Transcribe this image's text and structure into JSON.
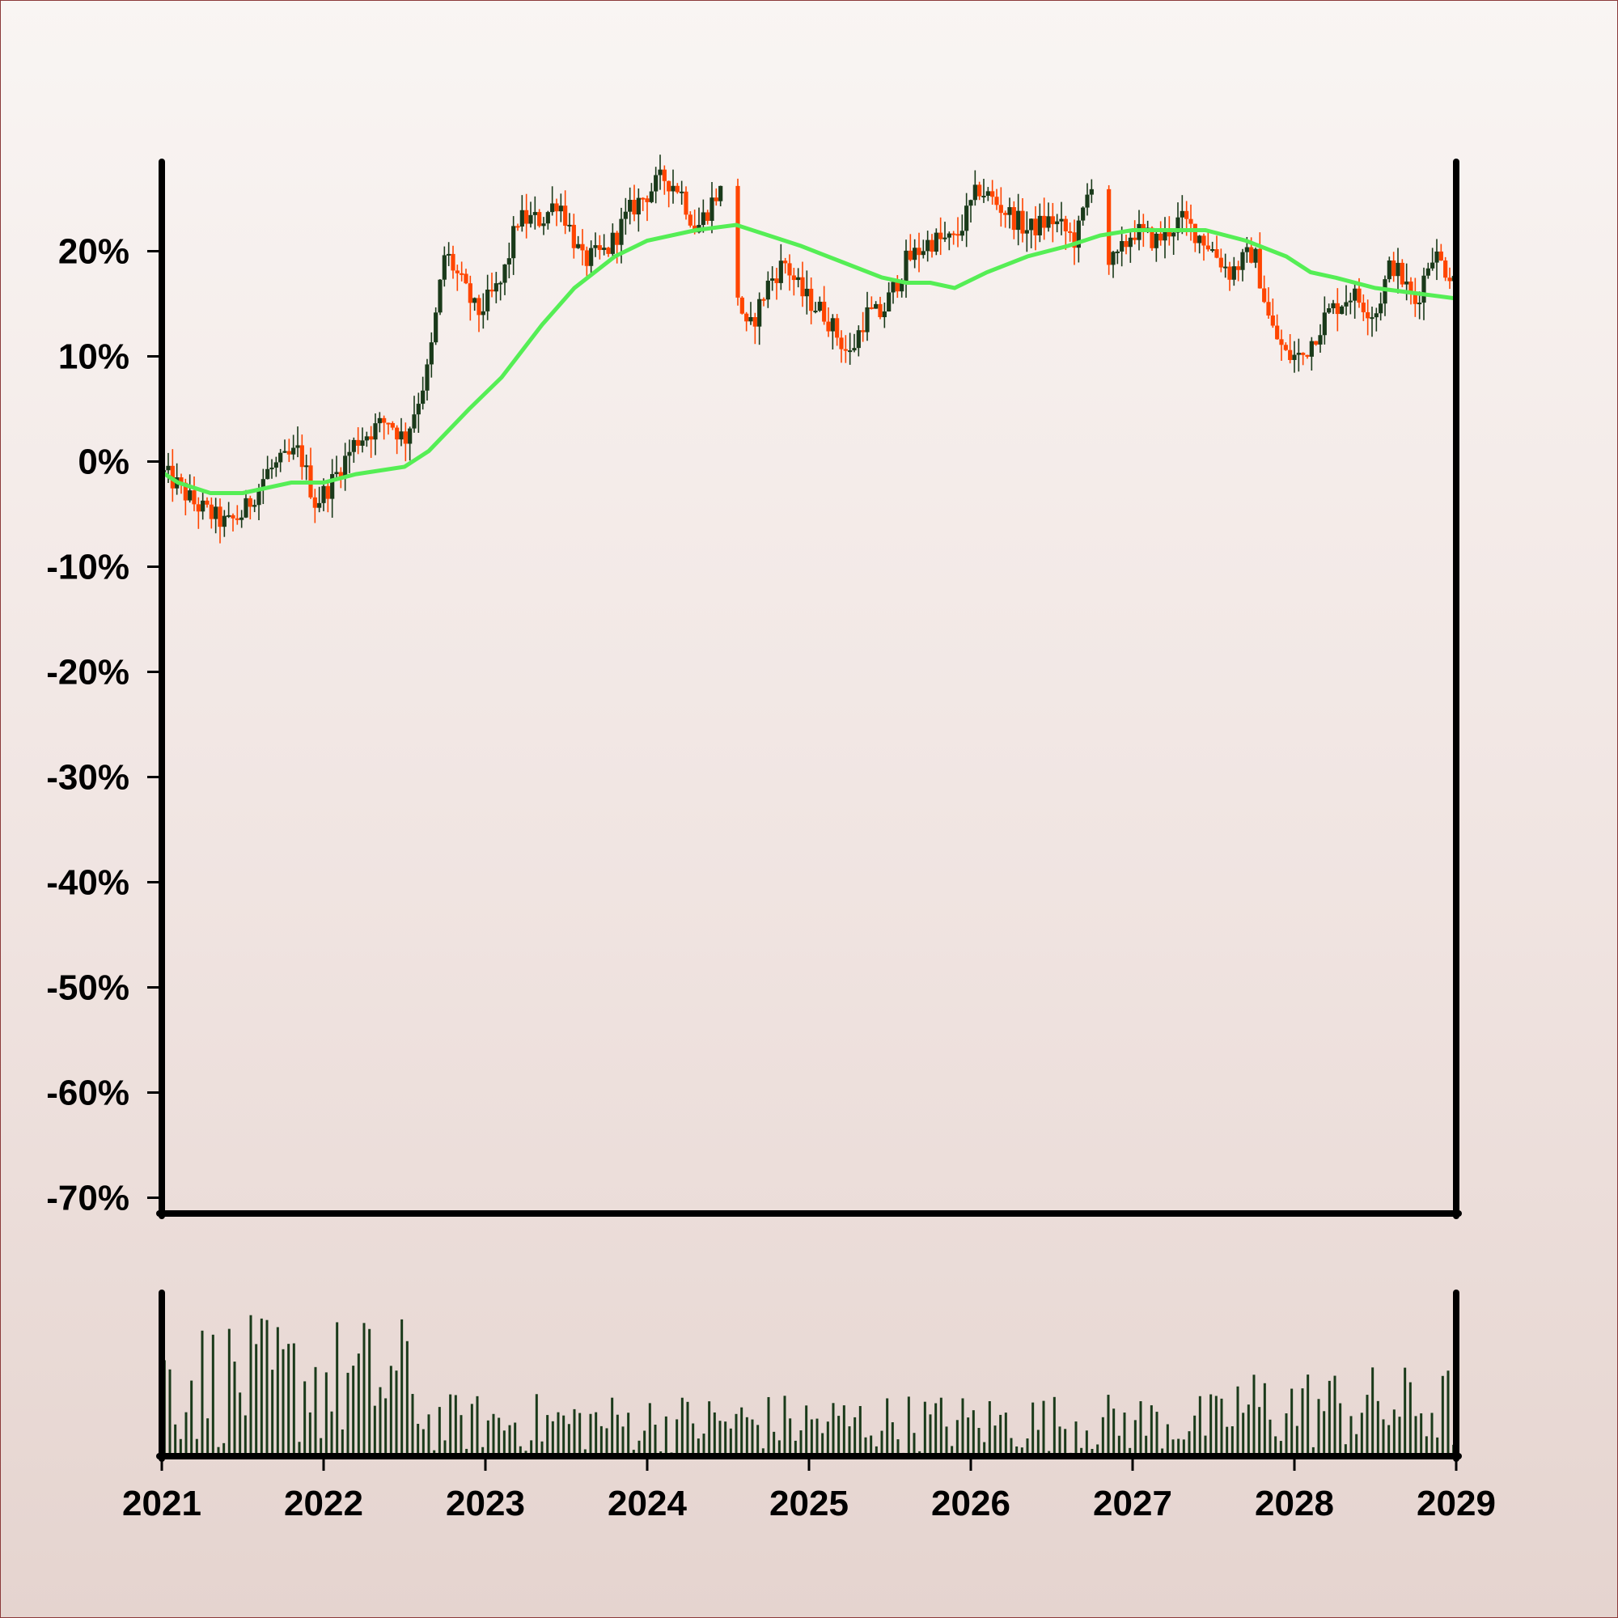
{
  "chart_data": {
    "type": "candlestick",
    "title": "",
    "xlabel": "",
    "ylabel": "",
    "x_ticks": [
      "2021",
      "2022",
      "2023",
      "2024",
      "2025",
      "2026",
      "2027",
      "2028",
      "2029"
    ],
    "y_ticks": [
      "20%",
      "10%",
      "0%",
      "-10%",
      "-20%",
      "-30%",
      "-40%",
      "-50%",
      "-60%",
      "-70%"
    ],
    "y_tick_values": [
      20,
      10,
      0,
      -10,
      -20,
      -30,
      -40,
      -50,
      -60,
      -70
    ],
    "xlim": [
      2021,
      2029
    ],
    "ylim": [
      -71.5,
      28.5
    ],
    "grid": false,
    "legend": "none",
    "colors": {
      "up": "#1a3a1a",
      "down": "#ff4500",
      "moving_average": "#55ee55",
      "volume": "#1a3a1a",
      "axes": "#000000"
    },
    "price_path": [
      [
        2021.0,
        -1
      ],
      [
        2021.08,
        -2
      ],
      [
        2021.2,
        -4
      ],
      [
        2021.4,
        -6
      ],
      [
        2021.5,
        -5
      ],
      [
        2021.65,
        -1
      ],
      [
        2021.85,
        1
      ],
      [
        2021.95,
        -4
      ],
      [
        2022.05,
        -2
      ],
      [
        2022.2,
        2
      ],
      [
        2022.4,
        4
      ],
      [
        2022.5,
        2
      ],
      [
        2022.65,
        9
      ],
      [
        2022.75,
        20
      ],
      [
        2022.85,
        17
      ],
      [
        2022.95,
        14
      ],
      [
        2023.1,
        17
      ],
      [
        2023.2,
        23
      ],
      [
        2023.35,
        23
      ],
      [
        2023.45,
        25
      ],
      [
        2023.6,
        19
      ],
      [
        2023.75,
        20
      ],
      [
        2023.9,
        24
      ],
      [
        2024.1,
        27
      ],
      [
        2024.2,
        26
      ],
      [
        2024.3,
        22
      ],
      [
        2024.45,
        26
      ],
      [
        2024.5,
        20
      ],
      [
        2024.62,
        12
      ],
      [
        2024.75,
        17
      ],
      [
        2024.85,
        19
      ],
      [
        2024.95,
        16
      ],
      [
        2025.1,
        14
      ],
      [
        2025.25,
        10
      ],
      [
        2025.35,
        14
      ],
      [
        2025.45,
        14
      ],
      [
        2025.6,
        19
      ],
      [
        2025.75,
        21
      ],
      [
        2025.9,
        21
      ],
      [
        2026.05,
        26
      ],
      [
        2026.2,
        24
      ],
      [
        2026.35,
        22
      ],
      [
        2026.5,
        23
      ],
      [
        2026.65,
        21
      ],
      [
        2026.75,
        27
      ],
      [
        2026.8,
        19
      ],
      [
        2026.9,
        19
      ],
      [
        2027.0,
        22
      ],
      [
        2027.15,
        21
      ],
      [
        2027.3,
        23
      ],
      [
        2027.45,
        21
      ],
      [
        2027.6,
        18
      ],
      [
        2027.75,
        20
      ],
      [
        2027.85,
        13
      ],
      [
        2027.95,
        10
      ],
      [
        2028.05,
        10
      ],
      [
        2028.2,
        14
      ],
      [
        2028.35,
        16
      ],
      [
        2028.5,
        14
      ],
      [
        2028.6,
        19
      ],
      [
        2028.75,
        15
      ],
      [
        2028.85,
        20
      ],
      [
        2028.95,
        18
      ],
      [
        2029.0,
        18
      ]
    ],
    "moving_average": [
      [
        2021.0,
        -1
      ],
      [
        2021.1,
        -2
      ],
      [
        2021.3,
        -3
      ],
      [
        2021.5,
        -3
      ],
      [
        2021.8,
        -2
      ],
      [
        2022.0,
        -2
      ],
      [
        2022.2,
        -1.2
      ],
      [
        2022.5,
        -0.5
      ],
      [
        2022.65,
        1
      ],
      [
        2022.9,
        5
      ],
      [
        2023.1,
        8
      ],
      [
        2023.35,
        13
      ],
      [
        2023.55,
        16.5
      ],
      [
        2023.8,
        19.5
      ],
      [
        2024.0,
        21
      ],
      [
        2024.3,
        22
      ],
      [
        2024.55,
        22.5
      ],
      [
        2024.75,
        21.5
      ],
      [
        2024.95,
        20.5
      ],
      [
        2025.2,
        19
      ],
      [
        2025.45,
        17.5
      ],
      [
        2025.6,
        17
      ],
      [
        2025.75,
        17
      ],
      [
        2025.9,
        16.5
      ],
      [
        2026.1,
        18
      ],
      [
        2026.35,
        19.5
      ],
      [
        2026.6,
        20.5
      ],
      [
        2026.8,
        21.5
      ],
      [
        2027.0,
        22
      ],
      [
        2027.2,
        22
      ],
      [
        2027.45,
        22
      ],
      [
        2027.7,
        21
      ],
      [
        2027.95,
        19.5
      ],
      [
        2028.1,
        18
      ],
      [
        2028.25,
        17.5
      ],
      [
        2028.5,
        16.5
      ],
      [
        2028.75,
        16
      ],
      [
        2029.0,
        15.5
      ]
    ],
    "volume_note": "volume bars shown in lower panel, no axis values printed"
  }
}
